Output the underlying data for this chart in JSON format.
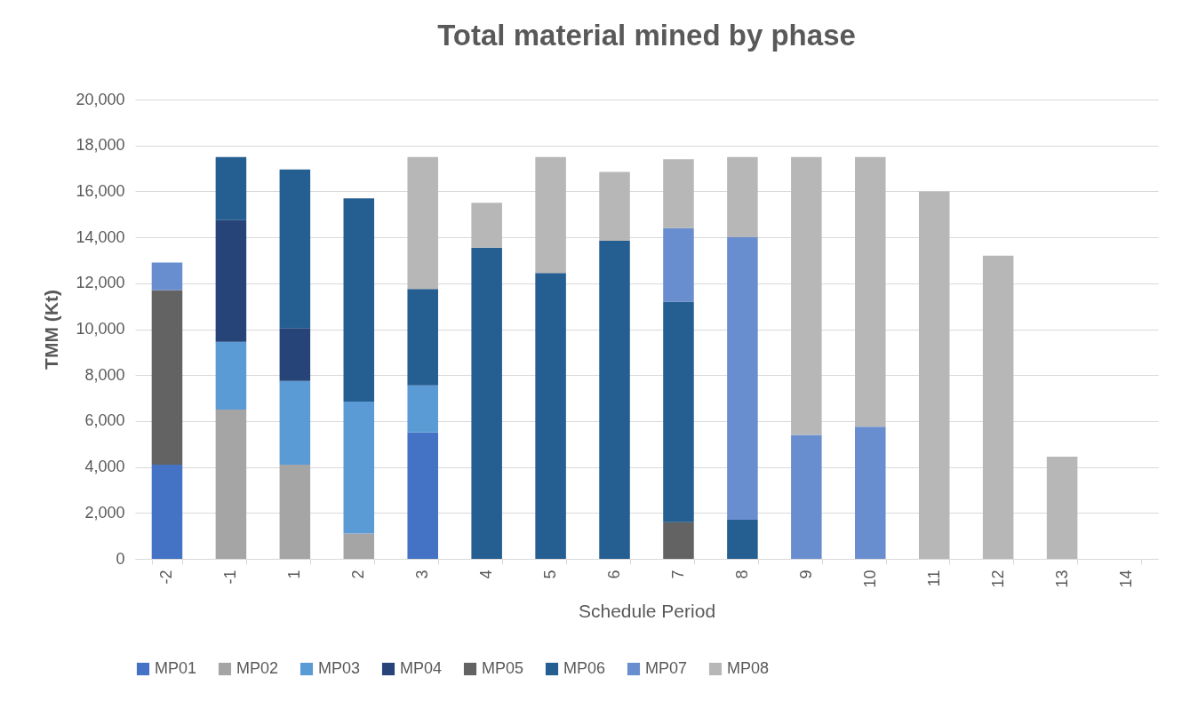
{
  "chart_data": {
    "type": "bar",
    "title": "Total material mined by phase",
    "xlabel": "Schedule Period",
    "ylabel": "TMM (Kt)",
    "categories": [
      "-2",
      "-1",
      "1",
      "2",
      "3",
      "4",
      "5",
      "6",
      "7",
      "8",
      "9",
      "10",
      "11",
      "12",
      "13",
      "14"
    ],
    "stacked": true,
    "ylim": [
      0,
      20000
    ],
    "yticks": [
      {
        "value": 0,
        "label": "0"
      },
      {
        "value": 2000,
        "label": "2,000"
      },
      {
        "value": 4000,
        "label": "4,000"
      },
      {
        "value": 6000,
        "label": "6,000"
      },
      {
        "value": 8000,
        "label": "8,000"
      },
      {
        "value": 10000,
        "label": "10,000"
      },
      {
        "value": 12000,
        "label": "12,000"
      },
      {
        "value": 14000,
        "label": "14,000"
      },
      {
        "value": 16000,
        "label": "16,000"
      },
      {
        "value": 18000,
        "label": "18,000"
      },
      {
        "value": 20000,
        "label": "20,000"
      }
    ],
    "grid": "y",
    "legend": "bottom",
    "series": [
      {
        "name": "MP01",
        "color": "#4472c4",
        "values": [
          4100,
          null,
          null,
          null,
          5500,
          null,
          null,
          null,
          null,
          null,
          null,
          null,
          null,
          null,
          null,
          null
        ]
      },
      {
        "name": "MP02",
        "color": "#a5a5a5",
        "values": [
          null,
          6500,
          4100,
          1100,
          null,
          null,
          null,
          null,
          null,
          null,
          null,
          null,
          null,
          null,
          null,
          null
        ]
      },
      {
        "name": "MP03",
        "color": "#5b9bd5",
        "values": [
          null,
          2950,
          3650,
          5750,
          2050,
          null,
          null,
          null,
          null,
          null,
          null,
          null,
          null,
          null,
          null,
          null
        ]
      },
      {
        "name": "MP04",
        "color": "#264478",
        "values": [
          null,
          5300,
          2300,
          null,
          null,
          null,
          null,
          null,
          null,
          null,
          null,
          null,
          null,
          null,
          null,
          null
        ]
      },
      {
        "name": "MP05",
        "color": "#636363",
        "values": [
          7600,
          null,
          null,
          null,
          null,
          null,
          null,
          null,
          1600,
          null,
          null,
          null,
          null,
          null,
          null,
          null
        ]
      },
      {
        "name": "MP06",
        "color": "#255e91",
        "values": [
          null,
          2750,
          6900,
          8850,
          4200,
          13550,
          12450,
          13850,
          9600,
          1700,
          null,
          null,
          null,
          null,
          null,
          null
        ]
      },
      {
        "name": "MP07",
        "color": "#698ed0",
        "values": [
          1200,
          null,
          null,
          null,
          null,
          null,
          null,
          null,
          3200,
          12300,
          5400,
          5750,
          null,
          null,
          null,
          null
        ]
      },
      {
        "name": "MP08",
        "color": "#b7b7b7",
        "values": [
          null,
          null,
          null,
          null,
          5750,
          1950,
          5050,
          3000,
          3000,
          3500,
          12100,
          11750,
          16000,
          13200,
          4450,
          null
        ]
      }
    ]
  }
}
